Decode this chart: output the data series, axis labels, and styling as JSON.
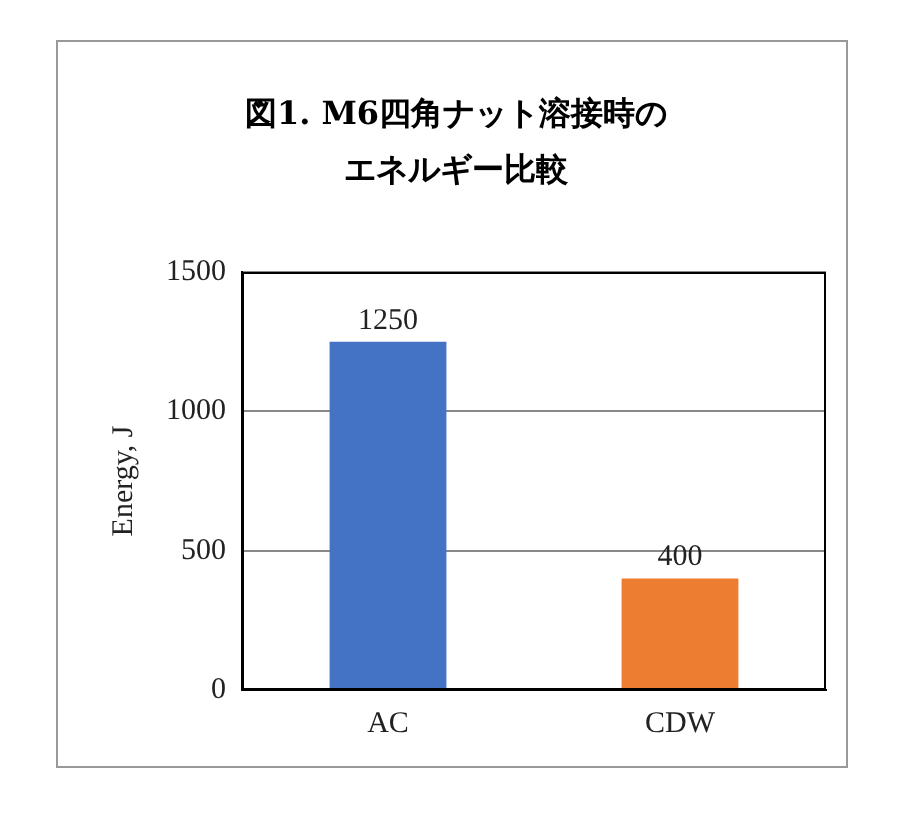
{
  "chart_data": {
    "type": "bar",
    "title": "図1. M6四角ナット溶接時のエネルギー比較",
    "ylabel": "Energy, J",
    "categories": [
      "AC",
      "CDW"
    ],
    "values": [
      1250,
      400
    ],
    "colors": [
      "#4472c4",
      "#ed7d31"
    ],
    "ylim": [
      0,
      1500
    ],
    "yticks": [
      0,
      500,
      1000,
      1500
    ],
    "grid": "y",
    "data_labels": true
  }
}
